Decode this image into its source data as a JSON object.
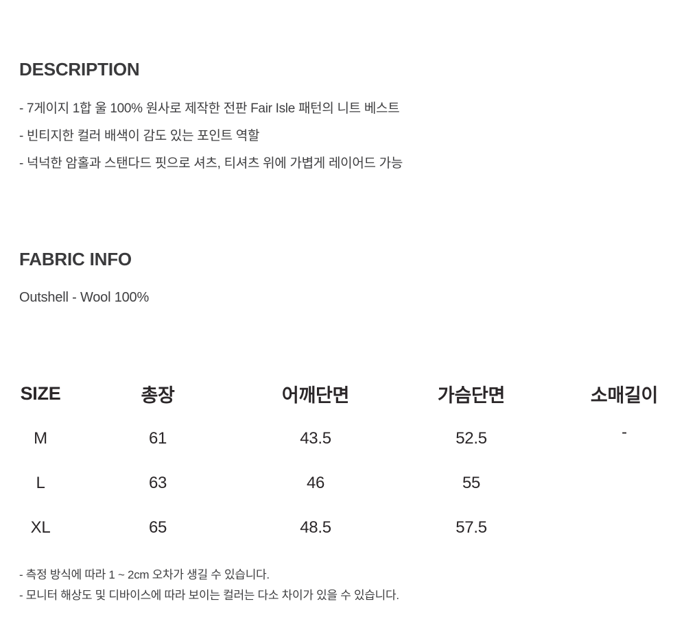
{
  "description": {
    "heading": "DESCRIPTION",
    "bullets": [
      "- 7게이지 1합 울 100% 원사로 제작한 전판 Fair Isle 패턴의 니트 베스트",
      "- 빈티지한 컬러 배색이 감도 있는 포인트 역할",
      "- 넉넉한 암홀과 스탠다드 핏으로 셔츠, 티셔츠 위에 가볍게 레이어드 가능"
    ]
  },
  "fabric_info": {
    "heading": "FABRIC INFO",
    "outshell": "Outshell - Wool 100%"
  },
  "size_chart": {
    "headers": [
      "SIZE",
      "총장",
      "어깨단면",
      "가슴단면",
      "소매길이"
    ],
    "rows": [
      [
        "M",
        "61",
        "43.5",
        "52.5",
        "-"
      ],
      [
        "L",
        "63",
        "46",
        "55",
        ""
      ],
      [
        "XL",
        "65",
        "48.5",
        "57.5",
        ""
      ]
    ]
  },
  "notes": [
    "- 측정 방식에 따라 1 ~ 2cm 오차가 생길 수 있습니다.",
    "- 모니터 해상도 및 디바이스에 따라 보이는 컬러는 다소 차이가 있을 수 있습니다."
  ],
  "colors": {
    "background": "#ffffff",
    "heading_text": "#3a3a3c",
    "body_text": "#3e3e40",
    "table_text": "#2a2628"
  }
}
